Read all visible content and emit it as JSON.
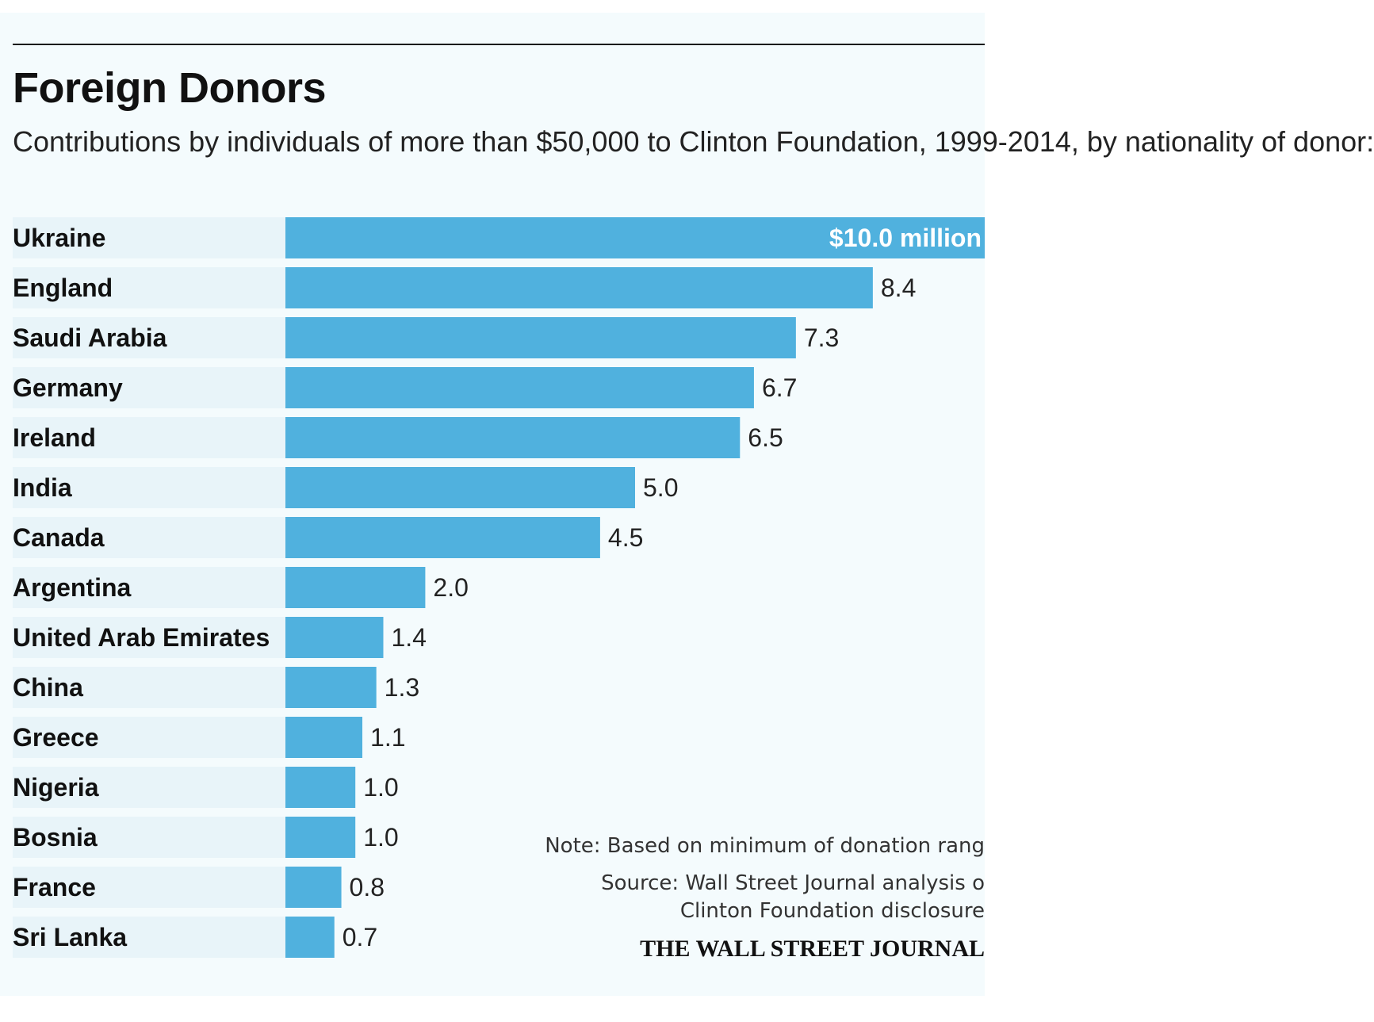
{
  "chart_data": {
    "type": "bar",
    "orientation": "horizontal",
    "title": "Foreign Donors",
    "subtitle": "Contributions by individuals of more than $50,000 to Clinton Foundation, 1999-2014, by nationality of donor:",
    "categories": [
      "Ukraine",
      "England",
      "Saudi Arabia",
      "Germany",
      "Ireland",
      "India",
      "Canada",
      "Argentina",
      "United Arab Emirates",
      "China",
      "Greece",
      "Nigeria",
      "Bosnia",
      "France",
      "Sri Lanka"
    ],
    "values": [
      10.0,
      8.4,
      7.3,
      6.7,
      6.5,
      5.0,
      4.5,
      2.0,
      1.4,
      1.3,
      1.1,
      1.0,
      1.0,
      0.8,
      0.7
    ],
    "value_labels": [
      "$10.0 million",
      "8.4",
      "7.3",
      "6.7",
      "6.5",
      "5.0",
      "4.5",
      "2.0",
      "1.4",
      "1.3",
      "1.1",
      "1.0",
      "1.0",
      "0.8",
      "0.7"
    ],
    "unit": "million",
    "xlim": [
      0,
      10
    ],
    "bar_color": "#50b1de",
    "label_band_color": "#e8f4f9",
    "grid": false,
    "legend": "none"
  },
  "notes": {
    "note": "Note: Based on minimum of donation rang",
    "source_line1": "Source: Wall Street Journal analysis o",
    "source_line2": "Clinton Foundation disclosure"
  },
  "masthead": "THE WALL STREET JOURNAL"
}
